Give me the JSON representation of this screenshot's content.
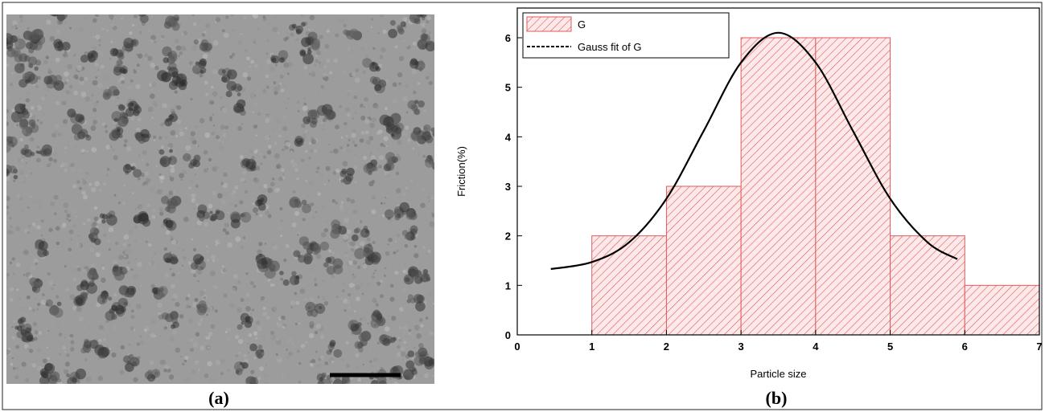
{
  "panel_labels": [
    "(a)",
    "(b)"
  ],
  "chart_data": {
    "type": "histogram",
    "xlabel": "Particle size",
    "ylabel": "Friction(%)",
    "bins": [
      1,
      2,
      3,
      4,
      5,
      6,
      7
    ],
    "values": [
      2,
      3,
      6,
      6,
      2,
      1
    ],
    "name": "G",
    "color": "#e05a5a",
    "fit": {
      "type": "line",
      "name": "Gauss fit of G",
      "color": "#000000",
      "x": [
        0.45,
        1,
        1.5,
        2,
        2.5,
        3,
        3.5,
        4,
        4.5,
        5,
        5.5,
        5.9
      ],
      "values": [
        1.33,
        1.47,
        1.87,
        2.75,
        4.12,
        5.5,
        6.1,
        5.5,
        4.12,
        2.75,
        1.87,
        1.53
      ]
    },
    "xlim": [
      0,
      7
    ],
    "ylim": [
      0,
      6.6
    ],
    "xticks": [
      0,
      1,
      2,
      3,
      4,
      5,
      6,
      7
    ],
    "yticks": [
      0,
      1,
      2,
      3,
      4,
      5,
      6
    ],
    "legend": "upper left"
  }
}
